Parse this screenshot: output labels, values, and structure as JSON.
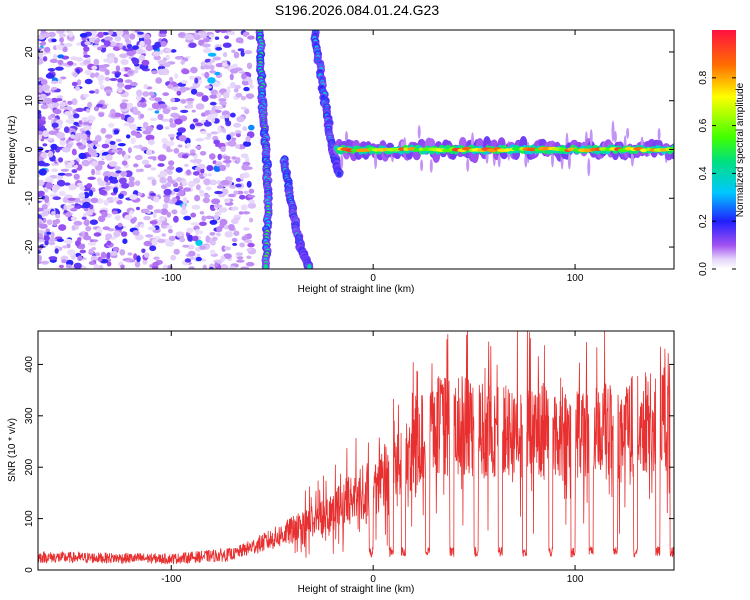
{
  "page": {
    "title": "S196.2026.084.01.24.G23"
  },
  "chart_data": [
    {
      "type": "heatmap",
      "xlabel": "Height of straight line (km)",
      "ylabel": "Frequency (Hz)",
      "xlim": [
        -166,
        149
      ],
      "ylim": [
        -24.5,
        24.5
      ],
      "xticks": [
        -100,
        0,
        100
      ],
      "xtick_labels": [
        "-100",
        "0",
        "100"
      ],
      "yticks": [
        -20,
        -10,
        0,
        10,
        20
      ],
      "ytick_labels": [
        "-20",
        "-10",
        "0",
        "10",
        "20"
      ],
      "colorbar": {
        "label": "Normalized spectral amplitude",
        "range": [
          0,
          1
        ],
        "ticks": [
          0.0,
          0.2,
          0.4,
          0.6,
          0.8
        ],
        "tick_labels": [
          "0.0",
          "0.2",
          "0.4",
          "0.6",
          "0.8"
        ],
        "colormap": "rainbow (white → violet → blue → cyan → green → yellow → red)"
      },
      "features": [
        {
          "name": "scattered noise",
          "x_range": [
            -166,
            -60
          ],
          "freq_range": [
            -24.5,
            24.5
          ],
          "amplitude": 0.15
        },
        {
          "name": "steep branch",
          "points": [
            [
              -56,
              24
            ],
            [
              -55,
              10
            ],
            [
              -53,
              0
            ],
            [
              -52,
              -10
            ],
            [
              -53,
              -24
            ]
          ],
          "amplitude": 0.45
        },
        {
          "name": "descending branch",
          "points": [
            [
              -44,
              -2
            ],
            [
              -40,
              -12
            ],
            [
              -36,
              -20
            ],
            [
              -32,
              -24
            ]
          ],
          "amplitude": 0.35
        },
        {
          "name": "ascending branch",
          "points": [
            [
              -29,
              24
            ],
            [
              -24,
              10
            ],
            [
              -20,
              0
            ],
            [
              -17,
              -5
            ]
          ],
          "amplitude": 0.3
        },
        {
          "name": "zero-frequency band",
          "x_range": [
            -18,
            149
          ],
          "frequency": 0,
          "amplitude": 0.9
        }
      ]
    },
    {
      "type": "line",
      "xlabel": "Height of straight line (km)",
      "ylabel": "SNR (10 * v/v)",
      "xlim": [
        -166,
        149
      ],
      "ylim": [
        0,
        465
      ],
      "xticks": [
        -100,
        0,
        100
      ],
      "xtick_labels": [
        "-100",
        "0",
        "100"
      ],
      "yticks": [
        0,
        100,
        200,
        300,
        400
      ],
      "ytick_labels": [
        "0",
        "100",
        "200",
        "300",
        "400"
      ],
      "color": "#e83030",
      "envelope": {
        "x": [
          -166,
          -100,
          -70,
          -50,
          -30,
          -10,
          0,
          10,
          20,
          30,
          40,
          60,
          80,
          100,
          120,
          149
        ],
        "y": [
          25,
          22,
          30,
          60,
          95,
          140,
          160,
          190,
          240,
          280,
          280,
          270,
          265,
          265,
          270,
          300
        ]
      },
      "dips": [
        -1,
        9,
        15,
        27,
        39,
        51,
        63,
        75,
        88,
        99,
        108,
        120,
        130,
        141,
        148
      ],
      "dip_value": 25
    }
  ]
}
